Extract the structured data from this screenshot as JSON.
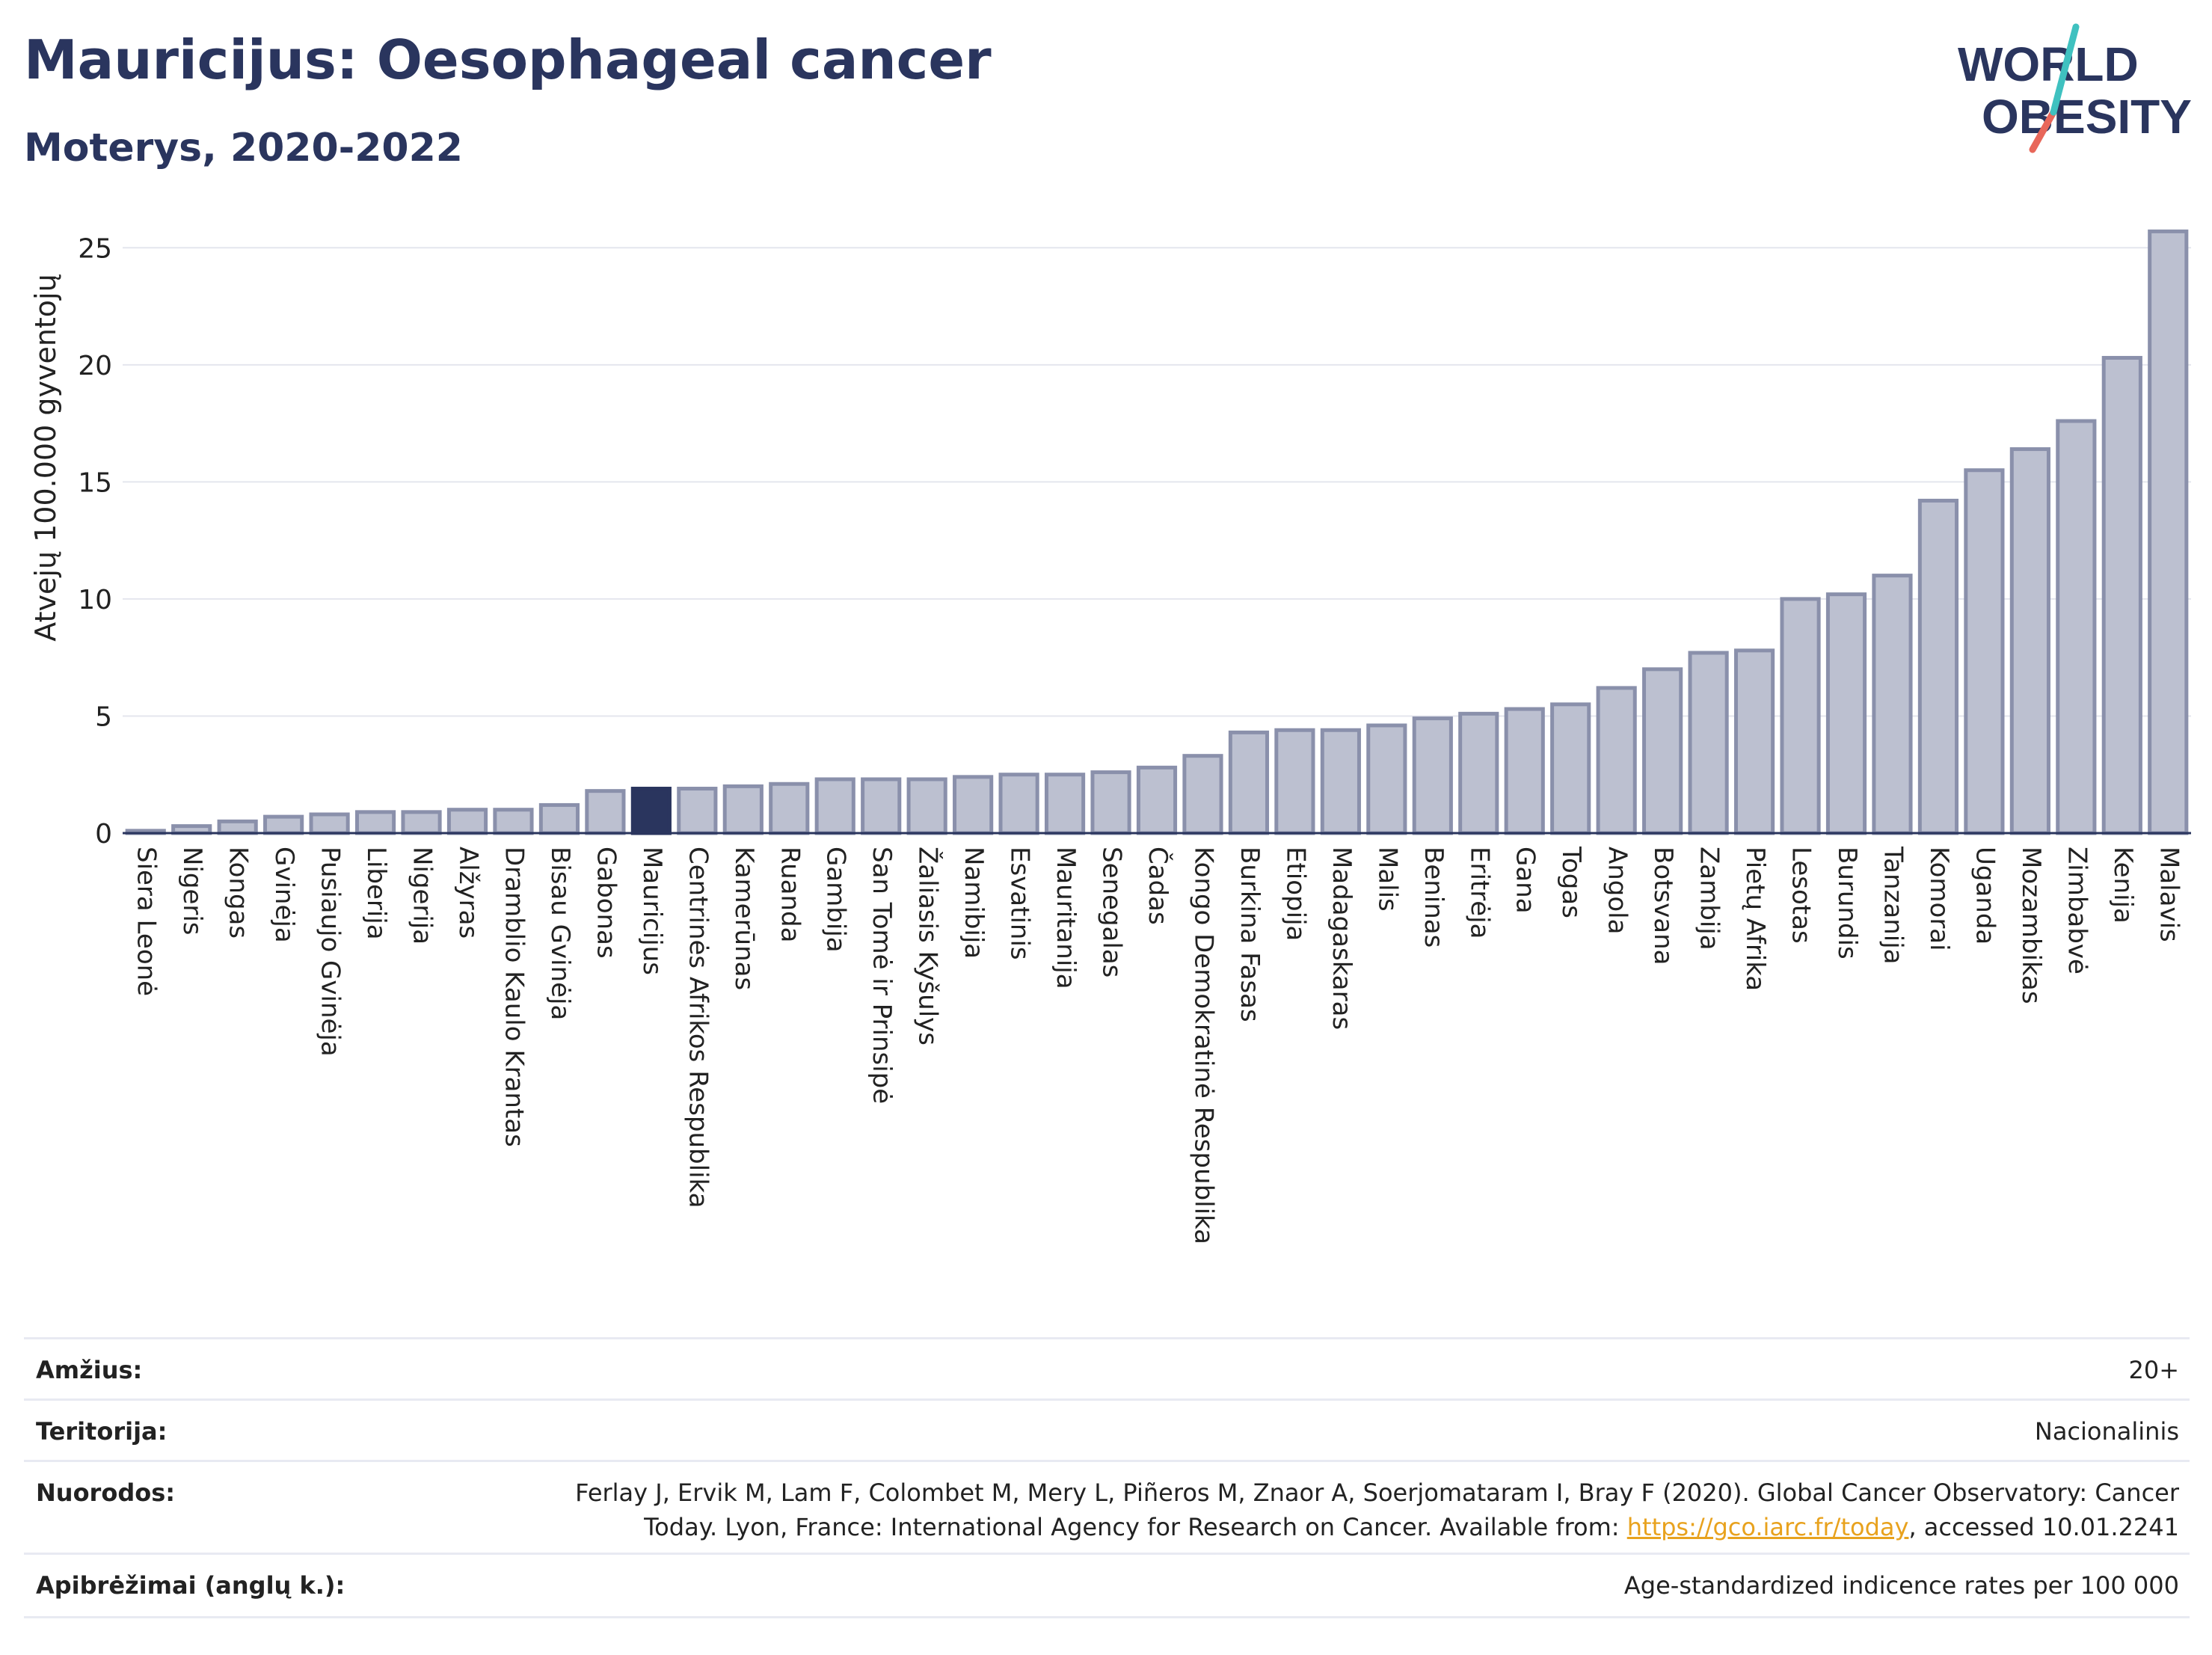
{
  "header": {
    "title": "Mauricijus: Oesophageal cancer",
    "subtitle": "Moterys, 2020-2022",
    "logo_line1": "WORLD",
    "logo_line2": "OBESITY"
  },
  "colors": {
    "bar": "#bcc0d0",
    "bar_border": "#8a90ab",
    "highlight": "#2a355e",
    "title": "#2a355e",
    "link": "#e8a21e",
    "logo_teal": "#3fc1c0",
    "logo_red": "#e8675a"
  },
  "chart_data": {
    "type": "bar",
    "ylabel": "Atvejų 100.000 gyventojų",
    "xlabel": "",
    "ylim": [
      0,
      26
    ],
    "yticks": [
      0,
      5,
      10,
      15,
      20,
      25
    ],
    "highlight": "Mauricijus",
    "grid": true,
    "categories": [
      "Siera Leonė",
      "Nigeris",
      "Kongas",
      "Gvinėja",
      "Pusiaujo Gvinėja",
      "Liberija",
      "Nigerija",
      "Alžyras",
      "Dramblio Kaulo Krantas",
      "Bisau Gvinėja",
      "Gabonas",
      "Mauricijus",
      "Centrinės Afrikos Respublika",
      "Kamerūnas",
      "Ruanda",
      "Gambija",
      "San Tomė ir Prinsipė",
      "Žaliasis Kyšulys",
      "Namibija",
      "Esvatinis",
      "Mauritanija",
      "Senegalas",
      "Čadas",
      "Kongo Demokratinė Respublika",
      "Burkina Fasas",
      "Etiopija",
      "Madagaskaras",
      "Malis",
      "Beninas",
      "Eritrėja",
      "Gana",
      "Togas",
      "Angola",
      "Botsvana",
      "Zambija",
      "Pietų Afrika",
      "Lesotas",
      "Burundis",
      "Tanzanija",
      "Komorai",
      "Uganda",
      "Mozambikas",
      "Zimbabvė",
      "Kenija",
      "Malavis"
    ],
    "values": [
      0.1,
      0.3,
      0.5,
      0.7,
      0.8,
      0.9,
      0.9,
      1.0,
      1.0,
      1.2,
      1.8,
      1.9,
      1.9,
      2.0,
      2.1,
      2.3,
      2.3,
      2.3,
      2.4,
      2.5,
      2.5,
      2.6,
      2.8,
      3.3,
      4.3,
      4.4,
      4.4,
      4.6,
      4.9,
      5.1,
      5.3,
      5.5,
      6.2,
      7.0,
      7.7,
      7.8,
      10.0,
      10.2,
      11.0,
      14.2,
      15.5,
      16.4,
      17.6,
      20.3,
      25.7
    ]
  },
  "info": {
    "age_label": "Amžius:",
    "age_value": "20+",
    "territory_label": "Teritorija:",
    "territory_value": "Nacionalinis",
    "references_label": "Nuorodos:",
    "references_line1": "Ferlay J, Ervik M, Lam F, Colombet M, Mery L, Piñeros M, Znaor A, Soerjomataram I, Bray F (2020). Global Cancer Observatory: Cancer",
    "references_line2_pre": "Today. Lyon, France: International Agency for Research on Cancer. Available from: ",
    "references_link": "https://gco.iarc.fr/today",
    "references_line2_post": ", accessed 10.01.2241",
    "definitions_label": "Apibrėžimai (anglų k.):",
    "definitions_value": "Age-standardized indicence rates per 100 000"
  }
}
